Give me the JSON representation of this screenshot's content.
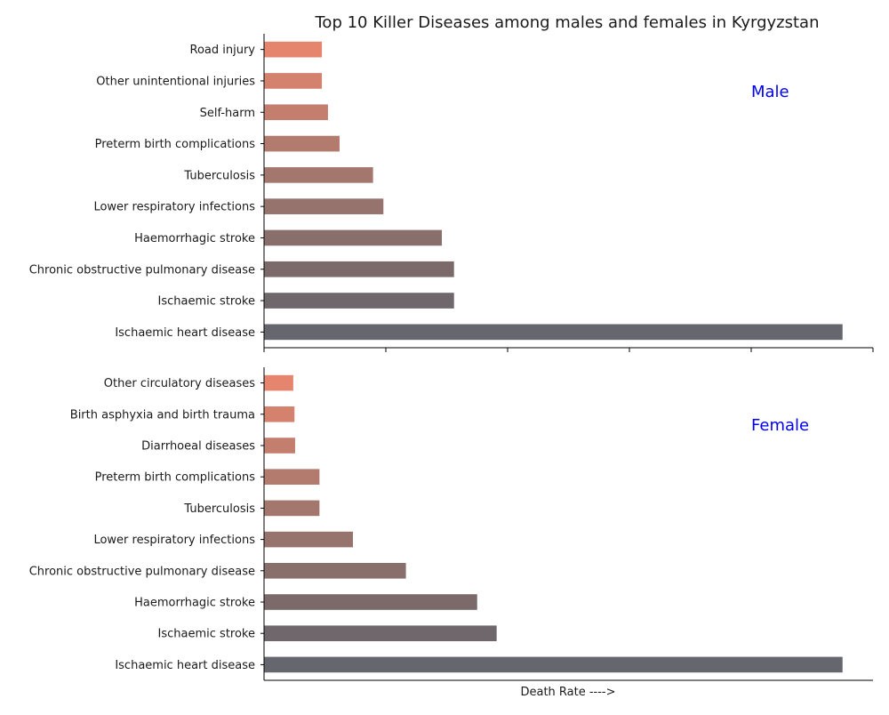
{
  "chart_data": {
    "type": "bar",
    "orientation": "horizontal",
    "title": "Top 10 Killer Diseases among males and females in Kyrgyzstan",
    "xlabel": "Death Rate ---->",
    "x_tick_labels_shown": false,
    "grid": false,
    "xlim": [
      0,
      100
    ],
    "panels": [
      {
        "name": "Male",
        "label_color": "#0000ee",
        "categories": [
          "Ischaemic heart disease",
          "Ischaemic stroke",
          "Chronic obstructive pulmonary disease",
          "Haemorrhagic stroke",
          "Lower respiratory infections",
          "Tuberculosis",
          "Preterm birth complications",
          "Self-harm",
          "Other unintentional injuries",
          "Road injury"
        ],
        "values": [
          95,
          31.2,
          31.2,
          29.2,
          19.6,
          17.9,
          12.4,
          10.5,
          9.5,
          9.5
        ]
      },
      {
        "name": "Female",
        "label_color": "#0000ee",
        "categories": [
          "Ischaemic heart disease",
          "Ischaemic stroke",
          "Haemorrhagic stroke",
          "Chronic obstructive pulmonary disease",
          "Lower respiratory infections",
          "Tuberculosis",
          "Preterm birth complications",
          "Diarrhoeal diseases",
          "Birth asphyxia and birth trauma",
          "Other circulatory diseases"
        ],
        "values": [
          95,
          38.2,
          35,
          23.3,
          14.6,
          9.1,
          9.1,
          5.1,
          5,
          4.8
        ]
      }
    ],
    "bar_colors": [
      "#66666e",
      "#6f676c",
      "#7c6a6b",
      "#896f6c",
      "#97736d",
      "#a4776e",
      "#b37a6e",
      "#c37e6e",
      "#d4826e",
      "#e5856d",
      "#f08a6e"
    ]
  }
}
